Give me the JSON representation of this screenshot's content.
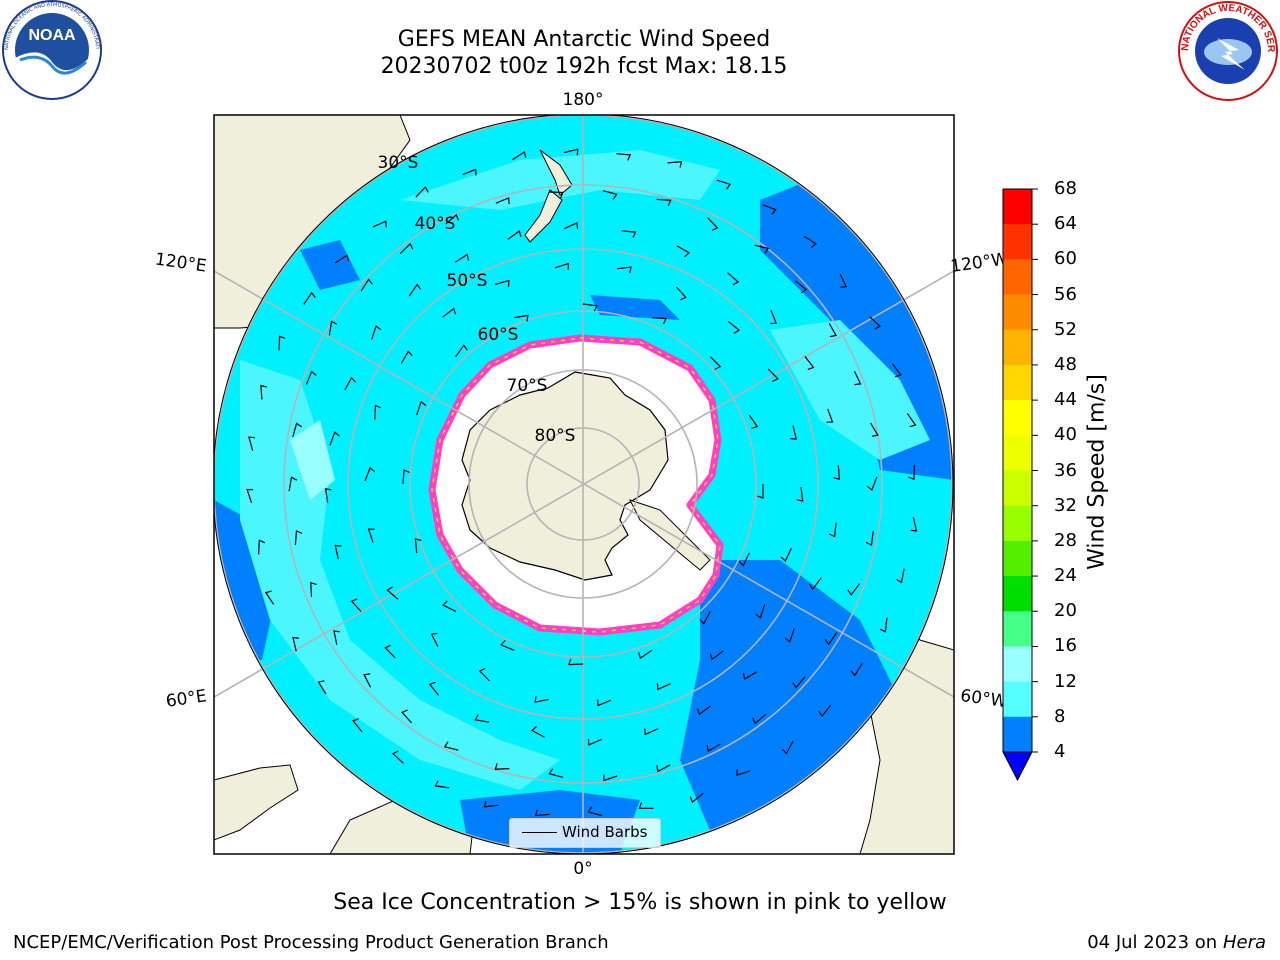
{
  "title_line1": "GEFS MEAN Antarctic Wind Speed",
  "title_line2": "20230702 t00z 192h fcst   Max: 18.15",
  "logos": {
    "noaa": {
      "text": "NOAA",
      "ring_text": "NATIONAL OCEANIC AND ATMOSPHERIC ADMINISTRATION · U.S. DEPARTMENT OF COMMERCE"
    },
    "nws": {
      "ring_text": "NATIONAL WEATHER SERVICE"
    }
  },
  "map": {
    "projection": "south-polar-stereographic",
    "lon_labels": {
      "top": "180°",
      "bottom": "0°",
      "upper_left": "120°E",
      "upper_right": "120°W",
      "lower_left": "60°E",
      "lower_right": "60°W"
    },
    "lat_labels": [
      "30°S",
      "40°S",
      "50°S",
      "60°S",
      "70°S",
      "80°S"
    ],
    "colors": {
      "land": "#efefdb",
      "ice": "#ffffff",
      "ocean_low": "#0080ff",
      "ocean_mid": "#00f0ff",
      "ocean_high": "#4cf6ff",
      "ice_edge": "#ff40c0",
      "ice_edge_high": "#ffcc44",
      "grid": "#b4b4b4"
    }
  },
  "legend": {
    "label": "Wind Barbs"
  },
  "colorbar": {
    "title": "Wind Speed [m/s]",
    "ticks": [
      "68",
      "64",
      "60",
      "56",
      "52",
      "48",
      "44",
      "40",
      "36",
      "32",
      "28",
      "24",
      "20",
      "16",
      "12",
      "8",
      "4"
    ],
    "colors": [
      "#ff0000",
      "#ff3300",
      "#ff6600",
      "#ff8c00",
      "#ffb300",
      "#ffd700",
      "#ffff00",
      "#eeff00",
      "#ccff00",
      "#99ff00",
      "#55ee00",
      "#00dd00",
      "#44ff88",
      "#99ffff",
      "#55ffff",
      "#00f0ff",
      "#0080ff"
    ],
    "extend_color": "#0000ff"
  },
  "ice_note": "Sea Ice Concentration > 15% is shown in pink to yellow",
  "footer_left": "NCEP/EMC/Verification Post Processing Product Generation Branch",
  "footer_date": "04 Jul 2023 on ",
  "footer_host": "Hera"
}
